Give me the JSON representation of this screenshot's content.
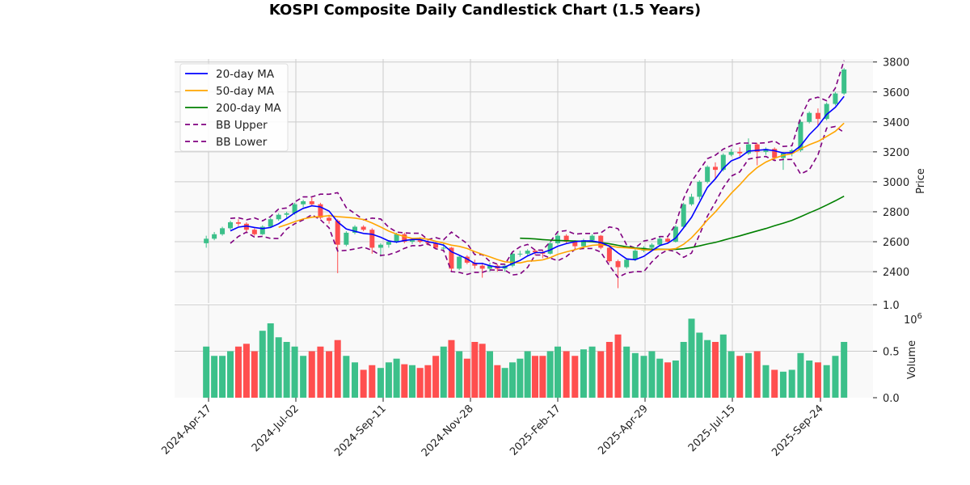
{
  "chart_data": {
    "type": "candlestick",
    "title": "KOSPI Composite Daily Candlestick Chart (1.5 Years)",
    "ylabel": "Price",
    "volume_label": "Volume",
    "volume_multiplier": "10^6",
    "ylim": [
      2190,
      3820
    ],
    "volume_ylim": [
      0,
      1.0
    ],
    "y_ticks": [
      2400,
      2600,
      2800,
      3000,
      3200,
      3400,
      3600,
      3800
    ],
    "volume_ticks": [
      "0.0",
      "0.5",
      "1.0"
    ],
    "x_ticks": [
      {
        "date": "2024-04-17",
        "label": "2024-Apr-17"
      },
      {
        "date": "2024-07-02",
        "label": "2024-Jul-02"
      },
      {
        "date": "2024-09-11",
        "label": "2024-Sep-11"
      },
      {
        "date": "2024-11-28",
        "label": "2024-Nov-28"
      },
      {
        "date": "2025-02-17",
        "label": "2025-Feb-17"
      },
      {
        "date": "2025-04-29",
        "label": "2025-Apr-29"
      },
      {
        "date": "2025-07-15",
        "label": "2025-Jul-15"
      },
      {
        "date": "2025-09-24",
        "label": "2025-Sep-24"
      }
    ],
    "grid": true,
    "legend_placement": "top-left",
    "legend": [
      "20-day MA",
      "50-day MA",
      "200-day MA",
      "BB Upper",
      "BB Lower"
    ],
    "colors": {
      "up": "#3cc08a",
      "down": "#ff4f4f",
      "ma20": "#0000ff",
      "ma50": "#ffa500",
      "ma200": "#008000",
      "bb": "#800080",
      "background": "#f9f9f9",
      "grid": "#cccccc"
    },
    "columns": [
      "date",
      "open",
      "high",
      "low",
      "close",
      "volume_millions"
    ],
    "candles": [
      [
        "2024-04-15",
        2590,
        2640,
        2560,
        2620,
        0.55
      ],
      [
        "2024-04-22",
        2620,
        2665,
        2610,
        2650,
        0.45
      ],
      [
        "2024-04-29",
        2650,
        2700,
        2640,
        2690,
        0.45
      ],
      [
        "2024-05-06",
        2690,
        2740,
        2680,
        2730,
        0.5
      ],
      [
        "2024-05-13",
        2730,
        2750,
        2705,
        2720,
        0.55
      ],
      [
        "2024-05-20",
        2720,
        2730,
        2660,
        2680,
        0.58
      ],
      [
        "2024-05-27",
        2680,
        2690,
        2640,
        2650,
        0.5
      ],
      [
        "2024-06-03",
        2650,
        2710,
        2645,
        2700,
        0.72
      ],
      [
        "2024-06-10",
        2700,
        2760,
        2695,
        2750,
        0.8
      ],
      [
        "2024-06-17",
        2750,
        2790,
        2740,
        2780,
        0.65
      ],
      [
        "2024-06-24",
        2780,
        2800,
        2760,
        2790,
        0.6
      ],
      [
        "2024-07-01",
        2790,
        2860,
        2780,
        2850,
        0.55
      ],
      [
        "2024-07-08",
        2850,
        2880,
        2830,
        2870,
        0.45
      ],
      [
        "2024-07-15",
        2870,
        2895,
        2840,
        2850,
        0.5
      ],
      [
        "2024-07-22",
        2850,
        2860,
        2750,
        2760,
        0.55
      ],
      [
        "2024-07-29",
        2760,
        2780,
        2720,
        2740,
        0.5
      ],
      [
        "2024-08-05",
        2740,
        2750,
        2390,
        2580,
        0.62
      ],
      [
        "2024-08-12",
        2580,
        2670,
        2570,
        2660,
        0.45
      ],
      [
        "2024-08-19",
        2660,
        2710,
        2650,
        2700,
        0.38
      ],
      [
        "2024-08-26",
        2700,
        2710,
        2670,
        2680,
        0.3
      ],
      [
        "2024-09-02",
        2680,
        2690,
        2520,
        2560,
        0.35
      ],
      [
        "2024-09-09",
        2560,
        2590,
        2500,
        2580,
        0.32
      ],
      [
        "2024-09-16",
        2580,
        2610,
        2560,
        2600,
        0.38
      ],
      [
        "2024-09-23",
        2600,
        2660,
        2590,
        2650,
        0.42
      ],
      [
        "2024-09-30",
        2650,
        2660,
        2590,
        2600,
        0.36
      ],
      [
        "2024-10-07",
        2600,
        2625,
        2585,
        2610,
        0.35
      ],
      [
        "2024-10-14",
        2610,
        2630,
        2590,
        2600,
        0.32
      ],
      [
        "2024-10-21",
        2600,
        2615,
        2575,
        2590,
        0.35
      ],
      [
        "2024-10-28",
        2590,
        2600,
        2550,
        2560,
        0.45
      ],
      [
        "2024-11-04",
        2560,
        2590,
        2540,
        2560,
        0.55
      ],
      [
        "2024-11-11",
        2560,
        2565,
        2400,
        2420,
        0.62
      ],
      [
        "2024-11-18",
        2420,
        2510,
        2410,
        2500,
        0.5
      ],
      [
        "2024-11-25",
        2500,
        2510,
        2450,
        2460,
        0.42
      ],
      [
        "2024-12-02",
        2460,
        2480,
        2420,
        2440,
        0.6
      ],
      [
        "2024-12-09",
        2440,
        2460,
        2360,
        2420,
        0.58
      ],
      [
        "2024-12-16",
        2420,
        2460,
        2400,
        2440,
        0.5
      ],
      [
        "2024-12-23",
        2440,
        2450,
        2400,
        2420,
        0.35
      ],
      [
        "2024-12-30",
        2420,
        2450,
        2400,
        2440,
        0.32
      ],
      [
        "2025-01-06",
        2440,
        2530,
        2430,
        2520,
        0.38
      ],
      [
        "2025-01-13",
        2520,
        2540,
        2500,
        2520,
        0.42
      ],
      [
        "2025-01-20",
        2520,
        2550,
        2510,
        2540,
        0.5
      ],
      [
        "2025-01-27",
        2540,
        2550,
        2510,
        2530,
        0.45
      ],
      [
        "2025-02-03",
        2530,
        2545,
        2490,
        2520,
        0.45
      ],
      [
        "2025-02-10",
        2520,
        2600,
        2515,
        2590,
        0.5
      ],
      [
        "2025-02-17",
        2590,
        2660,
        2580,
        2640,
        0.55
      ],
      [
        "2025-02-24",
        2640,
        2650,
        2590,
        2600,
        0.5
      ],
      [
        "2025-03-03",
        2600,
        2610,
        2550,
        2570,
        0.45
      ],
      [
        "2025-03-10",
        2570,
        2620,
        2560,
        2610,
        0.52
      ],
      [
        "2025-03-17",
        2610,
        2650,
        2600,
        2640,
        0.55
      ],
      [
        "2025-03-24",
        2640,
        2645,
        2550,
        2560,
        0.5
      ],
      [
        "2025-03-31",
        2560,
        2570,
        2460,
        2470,
        0.6
      ],
      [
        "2025-04-07",
        2470,
        2480,
        2290,
        2430,
        0.68
      ],
      [
        "2025-04-14",
        2430,
        2490,
        2420,
        2480,
        0.55
      ],
      [
        "2025-04-21",
        2480,
        2550,
        2470,
        2540,
        0.48
      ],
      [
        "2025-04-28",
        2540,
        2570,
        2530,
        2560,
        0.45
      ],
      [
        "2025-05-05",
        2560,
        2590,
        2550,
        2580,
        0.5
      ],
      [
        "2025-05-12",
        2580,
        2630,
        2570,
        2620,
        0.42
      ],
      [
        "2025-05-19",
        2620,
        2630,
        2590,
        2600,
        0.38
      ],
      [
        "2025-05-26",
        2600,
        2710,
        2595,
        2700,
        0.4
      ],
      [
        "2025-06-02",
        2700,
        2860,
        2695,
        2850,
        0.6
      ],
      [
        "2025-06-09",
        2850,
        2920,
        2840,
        2900,
        0.85
      ],
      [
        "2025-06-16",
        2900,
        3010,
        2880,
        3000,
        0.7
      ],
      [
        "2025-06-23",
        3000,
        3110,
        2990,
        3100,
        0.62
      ],
      [
        "2025-06-30",
        3100,
        3130,
        3020,
        3080,
        0.6
      ],
      [
        "2025-07-07",
        3080,
        3190,
        3070,
        3180,
        0.68
      ],
      [
        "2025-07-14",
        3180,
        3220,
        3170,
        3200,
        0.5
      ],
      [
        "2025-07-21",
        3200,
        3230,
        3170,
        3190,
        0.45
      ],
      [
        "2025-07-28",
        3190,
        3290,
        3180,
        3250,
        0.48
      ],
      [
        "2025-08-04",
        3250,
        3260,
        3110,
        3200,
        0.5
      ],
      [
        "2025-08-11",
        3200,
        3230,
        3180,
        3220,
        0.35
      ],
      [
        "2025-08-18",
        3220,
        3230,
        3140,
        3160,
        0.3
      ],
      [
        "2025-08-25",
        3160,
        3200,
        3080,
        3190,
        0.28
      ],
      [
        "2025-09-01",
        3190,
        3220,
        3170,
        3210,
        0.3
      ],
      [
        "2025-09-08",
        3210,
        3410,
        3200,
        3400,
        0.48
      ],
      [
        "2025-09-15",
        3400,
        3470,
        3390,
        3460,
        0.4
      ],
      [
        "2025-09-22",
        3460,
        3490,
        3370,
        3420,
        0.38
      ],
      [
        "2025-09-29",
        3420,
        3530,
        3410,
        3520,
        0.35
      ],
      [
        "2025-10-06",
        3520,
        3600,
        3510,
        3590,
        0.45
      ],
      [
        "2025-10-13",
        3590,
        3760,
        3580,
        3750,
        0.6
      ]
    ]
  }
}
